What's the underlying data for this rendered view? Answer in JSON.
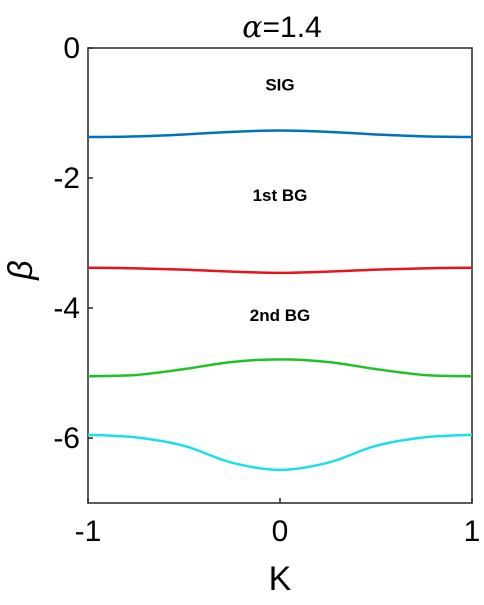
{
  "chart_data": {
    "type": "line",
    "title_symbol": "α",
    "title_value": "=1.4",
    "xlabel": "K",
    "ylabel": "β",
    "xlim": [
      -1,
      1
    ],
    "ylim": [
      -7,
      0
    ],
    "xticks": [
      -1,
      0,
      1
    ],
    "yticks": [
      0,
      -2,
      -4,
      -6
    ],
    "xtick_labels": [
      "-1",
      "0",
      "1"
    ],
    "ytick_labels": [
      "0",
      "-2",
      "-4",
      "-6"
    ],
    "grid": false,
    "x": [
      -1,
      -0.75,
      -0.5,
      -0.25,
      0,
      0.25,
      0.5,
      0.75,
      1
    ],
    "series": [
      {
        "color": "#0072bd",
        "values": [
          -1.37,
          -1.36,
          -1.33,
          -1.29,
          -1.27,
          -1.29,
          -1.33,
          -1.36,
          -1.37
        ]
      },
      {
        "color": "#e8141c",
        "values": [
          -3.38,
          -3.39,
          -3.41,
          -3.44,
          -3.46,
          -3.44,
          -3.41,
          -3.39,
          -3.38
        ]
      },
      {
        "color": "#1fc21f",
        "values": [
          -5.05,
          -5.03,
          -4.94,
          -4.83,
          -4.79,
          -4.83,
          -4.94,
          -5.03,
          -5.05
        ]
      },
      {
        "color": "#19e0e8",
        "values": [
          -5.95,
          -5.99,
          -6.12,
          -6.38,
          -6.49,
          -6.38,
          -6.12,
          -5.99,
          -5.95
        ]
      }
    ],
    "annotations": [
      {
        "text": "SIG",
        "x": 0,
        "y": -0.65
      },
      {
        "text": "1st BG",
        "x": 0,
        "y": -2.35
      },
      {
        "text": "2nd BG",
        "x": 0,
        "y": -4.2
      }
    ]
  }
}
